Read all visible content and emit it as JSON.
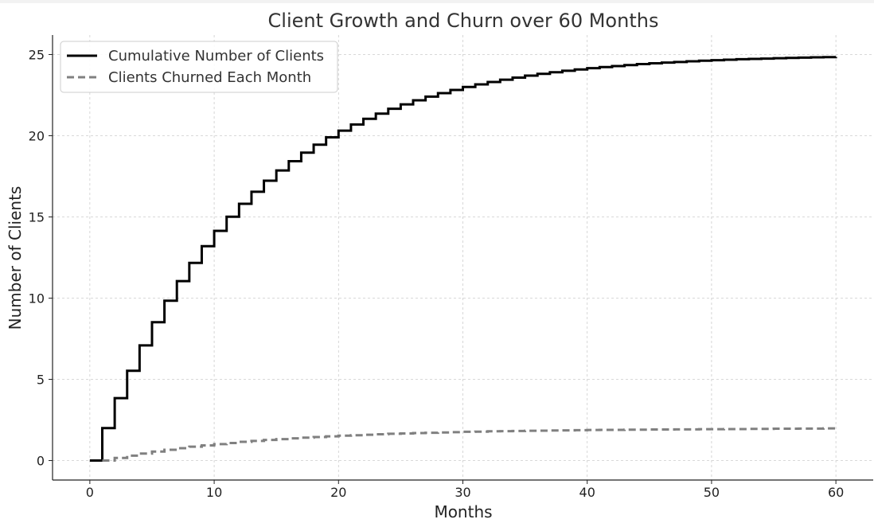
{
  "chart_data": {
    "type": "line",
    "drawstyle": "steps-post",
    "title": "Client Growth and Churn over 60 Months",
    "xlabel": "Months",
    "ylabel": "Number of Clients",
    "xlim": [
      -3,
      63
    ],
    "ylim": [
      -1.2,
      26.2
    ],
    "xticks": [
      0,
      10,
      20,
      30,
      40,
      50,
      60
    ],
    "yticks": [
      0,
      5,
      10,
      15,
      20,
      25
    ],
    "grid": true,
    "legend": "top-left",
    "series": [
      {
        "name": "Cumulative Number of Clients",
        "color": "#000000",
        "style": "solid",
        "x": [
          0,
          1,
          2,
          3,
          4,
          5,
          6,
          7,
          8,
          9,
          10,
          11,
          12,
          13,
          14,
          15,
          16,
          17,
          18,
          19,
          20,
          21,
          22,
          23,
          24,
          25,
          26,
          27,
          28,
          29,
          30,
          31,
          32,
          33,
          34,
          35,
          36,
          37,
          38,
          39,
          40,
          41,
          42,
          43,
          44,
          45,
          46,
          47,
          48,
          49,
          50,
          51,
          52,
          53,
          54,
          55,
          56,
          57,
          58,
          59,
          60
        ],
        "values": [
          0.0,
          2.0,
          3.84,
          5.53,
          7.09,
          8.52,
          9.84,
          11.05,
          12.17,
          13.2,
          14.14,
          15.01,
          15.81,
          16.55,
          17.23,
          17.86,
          18.43,
          18.96,
          19.45,
          19.9,
          20.31,
          20.69,
          21.04,
          21.36,
          21.66,
          21.93,
          22.18,
          22.41,
          22.62,
          22.82,
          23.0,
          23.16,
          23.31,
          23.45,
          23.58,
          23.7,
          23.81,
          23.91,
          24.0,
          24.08,
          24.16,
          24.23,
          24.29,
          24.35,
          24.41,
          24.46,
          24.5,
          24.54,
          24.58,
          24.62,
          24.65,
          24.68,
          24.71,
          24.73,
          24.75,
          24.77,
          24.79,
          24.81,
          24.83,
          24.84,
          24.85
        ]
      },
      {
        "name": "Clients Churned Each Month",
        "color": "#808080",
        "style": "dashed",
        "x": [
          1,
          2,
          3,
          4,
          5,
          6,
          7,
          8,
          9,
          10,
          11,
          12,
          13,
          14,
          15,
          16,
          17,
          18,
          19,
          20,
          21,
          22,
          23,
          24,
          25,
          26,
          27,
          28,
          29,
          30,
          31,
          32,
          33,
          34,
          35,
          36,
          37,
          38,
          39,
          40,
          41,
          42,
          43,
          44,
          45,
          46,
          47,
          48,
          49,
          50,
          51,
          52,
          53,
          54,
          55,
          56,
          57,
          58,
          59,
          60
        ],
        "values": [
          0.0,
          0.16,
          0.3,
          0.43,
          0.55,
          0.66,
          0.76,
          0.85,
          0.93,
          1.01,
          1.08,
          1.15,
          1.21,
          1.27,
          1.32,
          1.37,
          1.41,
          1.45,
          1.49,
          1.53,
          1.56,
          1.59,
          1.62,
          1.65,
          1.67,
          1.69,
          1.71,
          1.73,
          1.75,
          1.77,
          1.78,
          1.8,
          1.81,
          1.82,
          1.83,
          1.84,
          1.85,
          1.86,
          1.87,
          1.88,
          1.89,
          1.89,
          1.9,
          1.9,
          1.91,
          1.91,
          1.92,
          1.92,
          1.93,
          1.93,
          1.94,
          1.94,
          1.95,
          1.95,
          1.96,
          1.96,
          1.97,
          1.97,
          1.98,
          1.98
        ]
      }
    ]
  }
}
